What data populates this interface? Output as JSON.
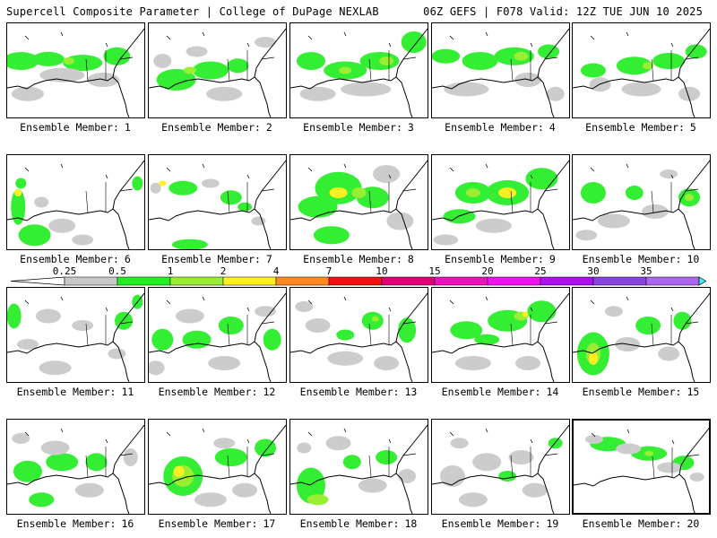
{
  "header": {
    "left": "Supercell Composite Parameter | College of DuPage NEXLAB",
    "right": "06Z GEFS | F078 Valid: 12Z TUE JUN 10 2025"
  },
  "panel_label_prefix": "Ensemble Member:",
  "members": [
    {
      "label": "1",
      "blobs": [
        [
          0.1,
          0.4,
          20,
          10,
          "#33ee33"
        ],
        [
          0.3,
          0.38,
          18,
          8,
          "#33ee33"
        ],
        [
          0.55,
          0.42,
          22,
          9,
          "#33ee33"
        ],
        [
          0.8,
          0.35,
          15,
          10,
          "#33ee33"
        ],
        [
          0.4,
          0.55,
          25,
          8,
          "#cccccc"
        ],
        [
          0.7,
          0.6,
          18,
          8,
          "#cccccc"
        ],
        [
          0.15,
          0.75,
          18,
          8,
          "#cccccc"
        ],
        [
          0.45,
          0.4,
          6,
          4,
          "#99ee33"
        ]
      ]
    },
    {
      "label": "2",
      "blobs": [
        [
          0.2,
          0.6,
          22,
          12,
          "#33ee33"
        ],
        [
          0.45,
          0.5,
          20,
          10,
          "#33ee33"
        ],
        [
          0.65,
          0.45,
          12,
          8,
          "#33ee33"
        ],
        [
          0.1,
          0.4,
          10,
          8,
          "#cccccc"
        ],
        [
          0.35,
          0.3,
          12,
          6,
          "#cccccc"
        ],
        [
          0.55,
          0.75,
          20,
          8,
          "#cccccc"
        ],
        [
          0.3,
          0.5,
          7,
          4,
          "#99ee33"
        ],
        [
          0.85,
          0.2,
          12,
          6,
          "#cccccc"
        ]
      ]
    },
    {
      "label": "3",
      "blobs": [
        [
          0.15,
          0.4,
          16,
          10,
          "#33ee33"
        ],
        [
          0.4,
          0.5,
          24,
          10,
          "#33ee33"
        ],
        [
          0.65,
          0.4,
          22,
          10,
          "#33ee33"
        ],
        [
          0.9,
          0.2,
          14,
          12,
          "#33ee33"
        ],
        [
          0.55,
          0.7,
          28,
          8,
          "#cccccc"
        ],
        [
          0.2,
          0.75,
          20,
          8,
          "#cccccc"
        ],
        [
          0.7,
          0.4,
          8,
          5,
          "#99ee33"
        ],
        [
          0.4,
          0.5,
          7,
          4,
          "#99ee33"
        ]
      ]
    },
    {
      "label": "4",
      "blobs": [
        [
          0.1,
          0.35,
          16,
          8,
          "#33ee33"
        ],
        [
          0.35,
          0.4,
          20,
          10,
          "#33ee33"
        ],
        [
          0.6,
          0.35,
          22,
          10,
          "#33ee33"
        ],
        [
          0.85,
          0.3,
          12,
          8,
          "#33ee33"
        ],
        [
          0.25,
          0.7,
          25,
          8,
          "#cccccc"
        ],
        [
          0.7,
          0.6,
          15,
          8,
          "#cccccc"
        ],
        [
          0.65,
          0.35,
          8,
          5,
          "#99ee33"
        ],
        [
          0.9,
          0.75,
          10,
          8,
          "#cccccc"
        ]
      ]
    },
    {
      "label": "5",
      "blobs": [
        [
          0.15,
          0.5,
          14,
          8,
          "#33ee33"
        ],
        [
          0.45,
          0.45,
          20,
          10,
          "#33ee33"
        ],
        [
          0.7,
          0.4,
          18,
          9,
          "#33ee33"
        ],
        [
          0.9,
          0.3,
          12,
          8,
          "#33ee33"
        ],
        [
          0.5,
          0.7,
          22,
          8,
          "#cccccc"
        ],
        [
          0.2,
          0.65,
          12,
          8,
          "#cccccc"
        ],
        [
          0.85,
          0.75,
          12,
          8,
          "#cccccc"
        ],
        [
          0.55,
          0.45,
          6,
          4,
          "#99ee33"
        ]
      ]
    },
    {
      "label": "6",
      "blobs": [
        [
          0.08,
          0.55,
          8,
          20,
          "#33ee33"
        ],
        [
          0.2,
          0.85,
          18,
          12,
          "#33ee33"
        ],
        [
          0.1,
          0.3,
          6,
          6,
          "#33ee33"
        ],
        [
          0.95,
          0.3,
          6,
          8,
          "#33ee33"
        ],
        [
          0.4,
          0.75,
          15,
          8,
          "#cccccc"
        ],
        [
          0.25,
          0.5,
          8,
          6,
          "#cccccc"
        ],
        [
          0.55,
          0.9,
          12,
          6,
          "#cccccc"
        ],
        [
          0.08,
          0.4,
          4,
          4,
          "#ffee22"
        ]
      ]
    },
    {
      "label": "7",
      "blobs": [
        [
          0.25,
          0.35,
          16,
          8,
          "#33ee33"
        ],
        [
          0.6,
          0.45,
          12,
          8,
          "#33ee33"
        ],
        [
          0.3,
          0.95,
          20,
          6,
          "#33ee33"
        ],
        [
          0.7,
          0.55,
          8,
          5,
          "#33ee33"
        ],
        [
          0.05,
          0.35,
          6,
          6,
          "#cccccc"
        ],
        [
          0.1,
          0.3,
          4,
          3,
          "#ffee22"
        ],
        [
          0.45,
          0.3,
          10,
          5,
          "#cccccc"
        ],
        [
          0.8,
          0.7,
          8,
          5,
          "#cccccc"
        ]
      ]
    },
    {
      "label": "8",
      "blobs": [
        [
          0.35,
          0.35,
          26,
          18,
          "#33ee33"
        ],
        [
          0.2,
          0.55,
          22,
          12,
          "#33ee33"
        ],
        [
          0.6,
          0.45,
          18,
          12,
          "#33ee33"
        ],
        [
          0.3,
          0.85,
          20,
          10,
          "#33ee33"
        ],
        [
          0.35,
          0.4,
          10,
          6,
          "#ffee22"
        ],
        [
          0.5,
          0.4,
          8,
          6,
          "#99ee33"
        ],
        [
          0.7,
          0.2,
          15,
          10,
          "#cccccc"
        ],
        [
          0.8,
          0.7,
          15,
          10,
          "#cccccc"
        ]
      ]
    },
    {
      "label": "9",
      "blobs": [
        [
          0.3,
          0.4,
          20,
          12,
          "#33ee33"
        ],
        [
          0.55,
          0.4,
          24,
          14,
          "#33ee33"
        ],
        [
          0.8,
          0.25,
          18,
          12,
          "#33ee33"
        ],
        [
          0.2,
          0.65,
          18,
          8,
          "#33ee33"
        ],
        [
          0.55,
          0.4,
          10,
          6,
          "#ffee22"
        ],
        [
          0.3,
          0.4,
          8,
          5,
          "#99ee33"
        ],
        [
          0.45,
          0.75,
          20,
          8,
          "#cccccc"
        ],
        [
          0.1,
          0.9,
          14,
          6,
          "#cccccc"
        ]
      ]
    },
    {
      "label": "10",
      "blobs": [
        [
          0.15,
          0.4,
          14,
          12,
          "#33ee33"
        ],
        [
          0.45,
          0.4,
          10,
          8,
          "#33ee33"
        ],
        [
          0.85,
          0.45,
          12,
          10,
          "#33ee33"
        ],
        [
          0.3,
          0.7,
          18,
          8,
          "#cccccc"
        ],
        [
          0.6,
          0.6,
          15,
          8,
          "#cccccc"
        ],
        [
          0.1,
          0.85,
          12,
          6,
          "#cccccc"
        ],
        [
          0.85,
          0.45,
          5,
          4,
          "#99ee33"
        ],
        [
          0.7,
          0.2,
          10,
          5,
          "#cccccc"
        ]
      ]
    },
    {
      "label": "11",
      "blobs": [
        [
          0.05,
          0.3,
          8,
          14,
          "#33ee33"
        ],
        [
          0.85,
          0.35,
          10,
          10,
          "#33ee33"
        ],
        [
          0.3,
          0.3,
          14,
          8,
          "#cccccc"
        ],
        [
          0.55,
          0.4,
          12,
          6,
          "#cccccc"
        ],
        [
          0.35,
          0.85,
          18,
          8,
          "#cccccc"
        ],
        [
          0.15,
          0.6,
          12,
          6,
          "#cccccc"
        ],
        [
          0.8,
          0.7,
          10,
          6,
          "#cccccc"
        ],
        [
          0.95,
          0.15,
          6,
          8,
          "#33ee33"
        ]
      ]
    },
    {
      "label": "12",
      "blobs": [
        [
          0.1,
          0.55,
          12,
          12,
          "#33ee33"
        ],
        [
          0.35,
          0.55,
          16,
          10,
          "#33ee33"
        ],
        [
          0.6,
          0.4,
          14,
          10,
          "#33ee33"
        ],
        [
          0.9,
          0.55,
          10,
          12,
          "#33ee33"
        ],
        [
          0.3,
          0.3,
          16,
          8,
          "#cccccc"
        ],
        [
          0.55,
          0.8,
          18,
          8,
          "#cccccc"
        ],
        [
          0.05,
          0.85,
          10,
          8,
          "#cccccc"
        ],
        [
          0.85,
          0.25,
          12,
          6,
          "#cccccc"
        ]
      ]
    },
    {
      "label": "13",
      "blobs": [
        [
          0.6,
          0.35,
          12,
          10,
          "#33ee33"
        ],
        [
          0.85,
          0.45,
          10,
          14,
          "#33ee33"
        ],
        [
          0.4,
          0.5,
          10,
          6,
          "#33ee33"
        ],
        [
          0.2,
          0.4,
          14,
          8,
          "#cccccc"
        ],
        [
          0.4,
          0.75,
          20,
          8,
          "#cccccc"
        ],
        [
          0.7,
          0.8,
          14,
          8,
          "#cccccc"
        ],
        [
          0.1,
          0.2,
          10,
          6,
          "#cccccc"
        ],
        [
          0.62,
          0.33,
          4,
          3,
          "#99ee33"
        ]
      ]
    },
    {
      "label": "14",
      "blobs": [
        [
          0.25,
          0.45,
          18,
          10,
          "#33ee33"
        ],
        [
          0.55,
          0.35,
          22,
          12,
          "#33ee33"
        ],
        [
          0.8,
          0.25,
          16,
          12,
          "#33ee33"
        ],
        [
          0.4,
          0.55,
          14,
          6,
          "#33ee33"
        ],
        [
          0.65,
          0.3,
          8,
          5,
          "#99ee33"
        ],
        [
          0.68,
          0.28,
          3,
          3,
          "#ffee22"
        ],
        [
          0.3,
          0.8,
          20,
          8,
          "#cccccc"
        ],
        [
          0.7,
          0.8,
          14,
          8,
          "#cccccc"
        ]
      ]
    },
    {
      "label": "15",
      "blobs": [
        [
          0.15,
          0.7,
          18,
          24,
          "#33ee33"
        ],
        [
          0.55,
          0.4,
          14,
          10,
          "#33ee33"
        ],
        [
          0.8,
          0.35,
          10,
          10,
          "#33ee33"
        ],
        [
          0.15,
          0.7,
          8,
          12,
          "#99ee33"
        ],
        [
          0.15,
          0.75,
          5,
          7,
          "#ffee22"
        ],
        [
          0.4,
          0.6,
          14,
          8,
          "#cccccc"
        ],
        [
          0.7,
          0.7,
          12,
          8,
          "#cccccc"
        ],
        [
          0.3,
          0.25,
          10,
          6,
          "#cccccc"
        ]
      ]
    },
    {
      "label": "16",
      "blobs": [
        [
          0.15,
          0.55,
          16,
          12,
          "#33ee33"
        ],
        [
          0.4,
          0.45,
          18,
          10,
          "#33ee33"
        ],
        [
          0.65,
          0.45,
          12,
          10,
          "#33ee33"
        ],
        [
          0.25,
          0.85,
          14,
          8,
          "#33ee33"
        ],
        [
          0.35,
          0.3,
          16,
          8,
          "#cccccc"
        ],
        [
          0.6,
          0.75,
          16,
          8,
          "#cccccc"
        ],
        [
          0.9,
          0.4,
          8,
          10,
          "#cccccc"
        ],
        [
          0.1,
          0.2,
          10,
          6,
          "#cccccc"
        ]
      ]
    },
    {
      "label": "17",
      "blobs": [
        [
          0.25,
          0.6,
          22,
          22,
          "#33ee33"
        ],
        [
          0.6,
          0.4,
          18,
          10,
          "#33ee33"
        ],
        [
          0.85,
          0.3,
          12,
          10,
          "#33ee33"
        ],
        [
          0.25,
          0.6,
          12,
          12,
          "#99ee33"
        ],
        [
          0.22,
          0.55,
          6,
          6,
          "#ffee22"
        ],
        [
          0.45,
          0.85,
          18,
          8,
          "#cccccc"
        ],
        [
          0.7,
          0.75,
          14,
          8,
          "#cccccc"
        ],
        [
          0.55,
          0.25,
          12,
          6,
          "#cccccc"
        ]
      ]
    },
    {
      "label": "18",
      "blobs": [
        [
          0.15,
          0.7,
          16,
          20,
          "#33ee33"
        ],
        [
          0.45,
          0.45,
          10,
          8,
          "#33ee33"
        ],
        [
          0.7,
          0.4,
          12,
          8,
          "#33ee33"
        ],
        [
          0.2,
          0.85,
          12,
          6,
          "#99ee33"
        ],
        [
          0.35,
          0.25,
          14,
          8,
          "#cccccc"
        ],
        [
          0.6,
          0.7,
          16,
          8,
          "#cccccc"
        ],
        [
          0.85,
          0.6,
          10,
          8,
          "#cccccc"
        ],
        [
          0.1,
          0.3,
          8,
          6,
          "#cccccc"
        ]
      ]
    },
    {
      "label": "19",
      "blobs": [
        [
          0.15,
          0.6,
          14,
          12,
          "#cccccc"
        ],
        [
          0.4,
          0.45,
          16,
          10,
          "#cccccc"
        ],
        [
          0.65,
          0.4,
          14,
          8,
          "#cccccc"
        ],
        [
          0.3,
          0.85,
          16,
          8,
          "#cccccc"
        ],
        [
          0.75,
          0.75,
          14,
          8,
          "#cccccc"
        ],
        [
          0.55,
          0.6,
          10,
          6,
          "#33ee33"
        ],
        [
          0.9,
          0.25,
          8,
          6,
          "#33ee33"
        ],
        [
          0.2,
          0.25,
          10,
          6,
          "#cccccc"
        ]
      ]
    },
    {
      "label": "20",
      "blobs": [
        [
          0.25,
          0.25,
          20,
          8,
          "#33ee33"
        ],
        [
          0.55,
          0.35,
          20,
          8,
          "#33ee33"
        ],
        [
          0.8,
          0.45,
          12,
          8,
          "#33ee33"
        ],
        [
          0.4,
          0.3,
          14,
          6,
          "#cccccc"
        ],
        [
          0.7,
          0.5,
          14,
          6,
          "#cccccc"
        ],
        [
          0.15,
          0.2,
          10,
          5,
          "#cccccc"
        ],
        [
          0.9,
          0.6,
          8,
          5,
          "#cccccc"
        ],
        [
          0.55,
          0.35,
          5,
          3,
          "#99ee33"
        ]
      ]
    }
  ],
  "colorbar": {
    "levels": [
      "0.25",
      "0.5",
      "1",
      "2",
      "4",
      "7",
      "10",
      "15",
      "20",
      "25",
      "30",
      "35"
    ],
    "colors": [
      "#c8c8c8",
      "#22ee22",
      "#99ee33",
      "#ffee22",
      "#ff8822",
      "#ee1111",
      "#dd0077",
      "#ee11bb",
      "#ee11ee",
      "#aa11ee",
      "#8844dd",
      "#aa66ee",
      "#44eeee"
    ]
  }
}
